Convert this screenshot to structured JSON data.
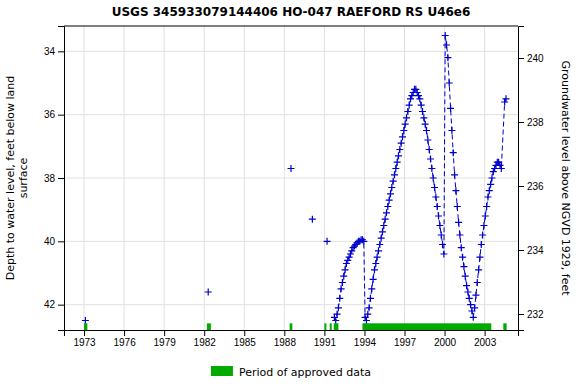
{
  "chart_data": {
    "type": "line",
    "title": "USGS 345933079144406 HO-047 RAEFORD RS U46e6",
    "ylabel": "Depth to water level, feet below land\n surface",
    "y2label": "Groundwater level above NGVD 1929, feet",
    "xlim": [
      1971.5,
      2005.5
    ],
    "xticks": [
      1973,
      1976,
      1979,
      1982,
      1985,
      1988,
      1991,
      1994,
      1997,
      2000,
      2003
    ],
    "ylim": [
      42.8,
      33.2
    ],
    "yticks": [
      34.0,
      36.0,
      38.0,
      40.0,
      42.0
    ],
    "y2lim": [
      231.5,
      241.0
    ],
    "y2ticks": [
      232.0,
      234.0,
      236.0,
      238.0,
      240.0
    ],
    "grid": true,
    "x": [
      1973.1,
      null,
      1982.3,
      null,
      1988.5,
      null,
      1990.1,
      null,
      1991.2,
      null,
      1991.75,
      1991.85,
      1991.95,
      1992.05,
      1992.15,
      1992.25,
      1992.35,
      1992.45,
      1992.55,
      1992.65,
      1992.75,
      1992.85,
      1992.95,
      1993.05,
      1993.15,
      1993.25,
      1993.35,
      1993.45,
      1993.55,
      1993.65,
      1993.75,
      1993.85,
      1993.95,
      1994.05,
      1994.15,
      1994.25,
      1994.35,
      1994.45,
      1994.55,
      1994.65,
      1994.75,
      1994.85,
      1994.95,
      1995.05,
      1995.15,
      1995.25,
      1995.35,
      1995.45,
      1995.55,
      1995.65,
      1995.75,
      1995.85,
      1995.95,
      1996.05,
      1996.15,
      1996.25,
      1996.35,
      1996.45,
      1996.55,
      1996.65,
      1996.75,
      1996.85,
      1996.95,
      1997.05,
      1997.15,
      1997.25,
      1997.35,
      1997.45,
      1997.55,
      1997.65,
      1997.75,
      1997.85,
      1997.95,
      1998.05,
      1998.15,
      1998.25,
      1998.35,
      1998.45,
      1998.55,
      1998.65,
      1998.75,
      1998.85,
      1998.95,
      1999.05,
      1999.15,
      1999.25,
      1999.35,
      1999.45,
      1999.55,
      1999.65,
      1999.75,
      1999.85,
      1999.95,
      2000.05,
      2000.15,
      2000.25,
      2000.35,
      2000.45,
      2000.55,
      2000.65,
      2000.75,
      2000.85,
      2000.95,
      2001.05,
      2001.15,
      2001.25,
      2001.35,
      2001.45,
      2001.55,
      2001.65,
      2001.75,
      2001.85,
      2001.95,
      2002.05,
      2002.15,
      2002.25,
      2002.35,
      2002.45,
      2002.55,
      2002.65,
      2002.75,
      2002.85,
      2002.95,
      2003.05,
      2003.15,
      2003.25,
      2003.35,
      2003.45,
      2003.55,
      2003.65,
      2003.75,
      2003.85,
      2003.95,
      2004.05,
      2004.15,
      2004.25,
      2004.5,
      2004.6
    ],
    "series": [
      {
        "color": "#0000cc",
        "marker": "+",
        "line_style": "dashed",
        "values": [
          42.5,
          null,
          41.6,
          null,
          37.7,
          null,
          39.3,
          null,
          40.0,
          null,
          42.4,
          42.5,
          42.3,
          42.1,
          41.8,
          41.5,
          41.3,
          41.1,
          40.9,
          40.7,
          40.6,
          40.5,
          40.4,
          40.3,
          40.2,
          40.15,
          40.1,
          40.05,
          40.0,
          40.0,
          39.95,
          39.95,
          40.0,
          42.4,
          42.5,
          42.3,
          42.1,
          41.8,
          41.5,
          41.2,
          40.9,
          40.7,
          40.5,
          40.3,
          40.1,
          39.9,
          39.7,
          39.5,
          39.3,
          39.1,
          38.9,
          38.7,
          38.5,
          38.3,
          38.1,
          37.9,
          37.7,
          37.5,
          37.3,
          37.1,
          36.9,
          36.7,
          36.5,
          36.3,
          36.1,
          35.9,
          35.7,
          35.5,
          35.4,
          35.3,
          35.2,
          35.2,
          35.3,
          35.4,
          35.5,
          35.7,
          35.9,
          36.1,
          36.3,
          36.5,
          36.8,
          37.1,
          37.4,
          37.7,
          38.0,
          38.3,
          38.6,
          38.9,
          39.2,
          39.5,
          39.8,
          40.1,
          40.4,
          33.5,
          33.8,
          34.2,
          35.0,
          35.8,
          36.5,
          37.2,
          37.9,
          38.4,
          38.9,
          39.4,
          39.8,
          40.2,
          40.5,
          40.8,
          41.1,
          41.4,
          41.6,
          41.8,
          42.0,
          42.2,
          42.4,
          42.1,
          41.7,
          41.3,
          40.9,
          40.5,
          40.1,
          39.8,
          39.5,
          39.2,
          38.9,
          38.6,
          38.4,
          38.2,
          38.0,
          37.8,
          37.7,
          37.6,
          37.5,
          37.5,
          37.6,
          37.7,
          35.6,
          35.5
        ]
      }
    ],
    "spans": [
      {
        "name": "Period of approved data",
        "color": "#00aa00",
        "ranges": [
          [
            1973.0,
            1973.25
          ],
          [
            1982.2,
            1982.5
          ],
          [
            1988.4,
            1988.6
          ],
          [
            1991.0,
            1991.15
          ],
          [
            1991.4,
            1991.55
          ],
          [
            1991.7,
            1992.05
          ],
          [
            1993.85,
            2003.5
          ],
          [
            2004.4,
            2004.65
          ]
        ]
      }
    ]
  }
}
